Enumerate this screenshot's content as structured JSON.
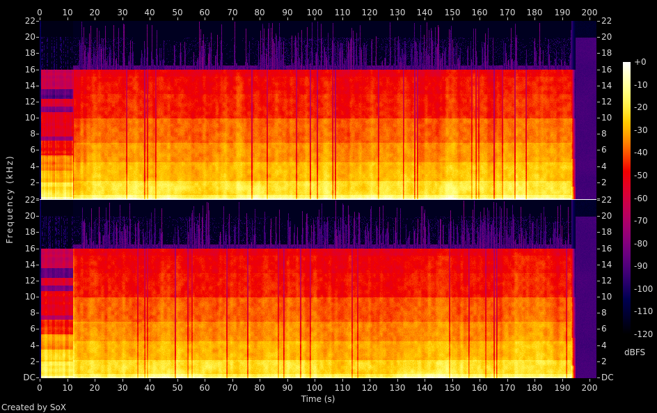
{
  "figure": {
    "footer": "Created by SoX",
    "background": "#000000",
    "text_color": "#d8d8d8",
    "tick_color": "#c8c8c8",
    "separator_color": "#ffffff"
  },
  "chart_data": {
    "type": "heatmap",
    "subtype": "audio-spectrogram",
    "tool": "SoX",
    "xlabel": "Time (s)",
    "ylabel": "Frequency (kHz)",
    "channels": [
      "channel-1-top",
      "channel-2-bottom"
    ],
    "x_axis": {
      "range_s": [
        0,
        202.5
      ],
      "ticks": [
        0,
        10,
        20,
        30,
        40,
        50,
        60,
        70,
        80,
        90,
        100,
        110,
        120,
        130,
        140,
        150,
        160,
        170,
        180,
        190,
        200
      ]
    },
    "y_axis": {
      "range_khz": [
        0,
        22.05
      ],
      "tick_labels_top_channel": [
        "22",
        "20",
        "18",
        "16",
        "14",
        "12",
        "10",
        "8",
        "6",
        "4",
        "2"
      ],
      "tick_labels_bottom_channel": [
        "22",
        "20",
        "18",
        "16",
        "14",
        "12",
        "10",
        "8",
        "6",
        "4",
        "2",
        "DC"
      ],
      "dc_label": "DC"
    },
    "colorbar": {
      "label": "dBFS",
      "ticks": [
        "+0",
        "-10",
        "-20",
        "-30",
        "-40",
        "-50",
        "-60",
        "-70",
        "-80",
        "-90",
        "-100",
        "-110",
        "-120"
      ],
      "range_db": [
        0,
        -120
      ],
      "palette_stops": [
        {
          "db": 0,
          "color": "#ffffff"
        },
        {
          "db": -12,
          "color": "#ffff8b"
        },
        {
          "db": -24,
          "color": "#ffd917"
        },
        {
          "db": -36,
          "color": "#fe7c00"
        },
        {
          "db": -48,
          "color": "#f01800"
        },
        {
          "db": -60,
          "color": "#d20040"
        },
        {
          "db": -72,
          "color": "#a6006e"
        },
        {
          "db": -84,
          "color": "#6e0080"
        },
        {
          "db": -96,
          "color": "#2f006e"
        },
        {
          "db": -108,
          "color": "#000040"
        },
        {
          "db": -120,
          "color": "#000000"
        }
      ]
    },
    "segments": [
      {
        "t_s": [
          0,
          0.38
        ],
        "label": "lead-in silence",
        "level_db": -103
      },
      {
        "t_s": [
          0.38,
          12
        ],
        "label": "quiet intro, horizontal banding",
        "bands": [
          {
            "f_khz": [
              20.1,
              22.05
            ],
            "level_db": -116,
            "texture": "smooth"
          },
          {
            "f_khz": [
              16.05,
              20.1
            ],
            "level_db": -99,
            "texture": "dotted"
          },
          {
            "f_khz": [
              13.6,
              16.05
            ],
            "level_db": -64,
            "texture": "banded"
          },
          {
            "f_khz": [
              12.4,
              13.6
            ],
            "level_db": -88,
            "texture": "banded"
          },
          {
            "f_khz": [
              11.5,
              12.4
            ],
            "level_db": -57,
            "texture": "banded"
          },
          {
            "f_khz": [
              10.8,
              11.5
            ],
            "level_db": -80,
            "texture": "banded"
          },
          {
            "f_khz": [
              7.7,
              10.8
            ],
            "level_db": -53,
            "texture": "banded"
          },
          {
            "f_khz": [
              7.2,
              7.7
            ],
            "level_db": -72,
            "texture": "banded"
          },
          {
            "f_khz": [
              5.4,
              7.2
            ],
            "level_db": -47,
            "texture": "banded"
          },
          {
            "f_khz": [
              3.5,
              5.4
            ],
            "level_db": -35,
            "texture": "banded"
          },
          {
            "f_khz": [
              2.0,
              3.5
            ],
            "level_db": -27,
            "texture": "banded"
          },
          {
            "f_khz": [
              1.5,
              2.0
            ],
            "level_db": -18,
            "texture": "banded"
          },
          {
            "f_khz": [
              0.2,
              1.5
            ],
            "level_db": -21,
            "texture": "banded"
          },
          {
            "f_khz": [
              0.0,
              0.2
            ],
            "level_db": -11,
            "texture": "smooth"
          }
        ]
      },
      {
        "t_s": [
          12,
          193.4
        ],
        "label": "main program, 16 kHz lowpass, transients to 22 kHz",
        "bands": [
          {
            "f_khz": [
              16.05,
              22.05
            ],
            "level_db": -86,
            "texture": "streaks"
          },
          {
            "f_khz": [
              15.2,
              16.05
            ],
            "level_db": -50,
            "texture": "smooth"
          },
          {
            "f_khz": [
              13.0,
              15.2
            ],
            "level_db": -47,
            "texture": "smooth"
          },
          {
            "f_khz": [
              10.0,
              13.0
            ],
            "level_db": -45,
            "texture": "smooth"
          },
          {
            "f_khz": [
              7.0,
              10.0
            ],
            "level_db": -38,
            "texture": "smooth"
          },
          {
            "f_khz": [
              4.5,
              7.0
            ],
            "level_db": -33,
            "texture": "smooth"
          },
          {
            "f_khz": [
              2.2,
              4.5
            ],
            "level_db": -28,
            "texture": "smooth"
          },
          {
            "f_khz": [
              0.5,
              2.2
            ],
            "level_db": -22,
            "texture": "smooth"
          },
          {
            "f_khz": [
              0.12,
              0.5
            ],
            "level_db": -15,
            "texture": "smooth"
          },
          {
            "f_khz": [
              0.0,
              0.12
            ],
            "level_db": -7,
            "texture": "smooth"
          }
        ]
      },
      {
        "t_s": [
          193.4,
          194.9
        ],
        "label": "fade-out",
        "ramp_db": -55
      },
      {
        "t_s": [
          194.9,
          202.5
        ],
        "label": "trailing noise floor",
        "level_db_below_20khz": -92,
        "level_db_above_20khz": -112
      }
    ]
  }
}
